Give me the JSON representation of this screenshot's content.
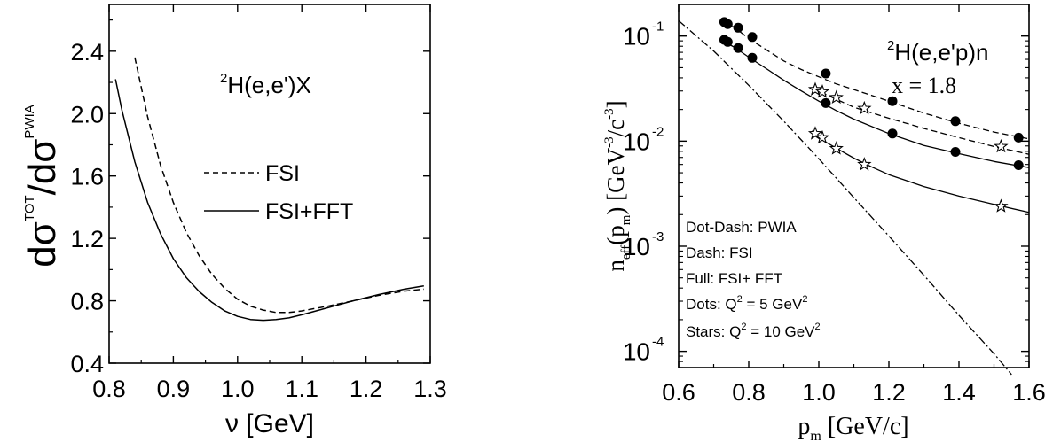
{
  "chart_data": [
    {
      "type": "line",
      "ylabel_main": "dσ",
      "ylabel_sup1": "TOT",
      "ylabel_mid": "/dσ",
      "ylabel_sup2": "PWIA",
      "xlabel": "ν [GeV]",
      "xlim": [
        0.8,
        1.3
      ],
      "ylim": [
        0.4,
        2.7
      ],
      "xticks": [
        0.8,
        0.9,
        1.0,
        1.1,
        1.2,
        1.3
      ],
      "xtick_labels": [
        "0.8",
        "0.9",
        "1.0",
        "1.1",
        "1.2",
        "1.3"
      ],
      "yticks": [
        0.4,
        0.8,
        1.2,
        1.6,
        2.0,
        2.4
      ],
      "ytick_labels": [
        "0.4",
        "0.8",
        "1.2",
        "1.6",
        "2.0",
        "2.4"
      ],
      "annotation": {
        "sup": "2",
        "text": "H(e,e')X"
      },
      "legend": {
        "placement": "center-right"
      },
      "series": [
        {
          "name": "FSI",
          "style": "dashed",
          "x": [
            0.84,
            0.86,
            0.88,
            0.9,
            0.92,
            0.94,
            0.96,
            0.98,
            1.0,
            1.02,
            1.04,
            1.06,
            1.08,
            1.1,
            1.14,
            1.18,
            1.22,
            1.26,
            1.29
          ],
          "y": [
            2.36,
            1.98,
            1.67,
            1.43,
            1.24,
            1.09,
            0.97,
            0.88,
            0.81,
            0.765,
            0.74,
            0.725,
            0.725,
            0.735,
            0.765,
            0.8,
            0.835,
            0.862,
            0.875
          ]
        },
        {
          "name": "FSI+FFT",
          "style": "solid",
          "x": [
            0.81,
            0.82,
            0.84,
            0.86,
            0.88,
            0.9,
            0.92,
            0.94,
            0.96,
            0.98,
            1.0,
            1.02,
            1.04,
            1.06,
            1.08,
            1.1,
            1.14,
            1.18,
            1.22,
            1.26,
            1.29
          ],
          "y": [
            2.22,
            2.02,
            1.69,
            1.43,
            1.23,
            1.07,
            0.95,
            0.86,
            0.79,
            0.735,
            0.7,
            0.68,
            0.675,
            0.68,
            0.69,
            0.71,
            0.755,
            0.8,
            0.84,
            0.875,
            0.895
          ]
        }
      ]
    },
    {
      "type": "scatter",
      "ylabel": "n",
      "ylabel_sub": "eff",
      "ylabel_arg_open": "(p",
      "ylabel_arg_sub": "m",
      "ylabel_units_open": ") [GeV",
      "ylabel_units_sup1": "-3",
      "ylabel_units_mid": "/c",
      "ylabel_units_sup2": "-3",
      "ylabel_units_close": "]",
      "xlabel": "p",
      "xlabel_sub": "m",
      "xlabel_units": " [GeV/c]",
      "xlim": [
        0.6,
        1.6
      ],
      "ylim": [
        7e-05,
        0.2
      ],
      "yscale": "log",
      "xticks": [
        0.6,
        0.8,
        1.0,
        1.2,
        1.4,
        1.6
      ],
      "xtick_labels": [
        "0.6",
        "0.8",
        "1.0",
        "1.2",
        "1.4",
        "1.6"
      ],
      "yticks": [
        0.0001,
        0.001,
        0.01,
        0.1
      ],
      "ytick_bases": [
        "10",
        "10",
        "10",
        "10"
      ],
      "ytick_exps": [
        "-4",
        "-3",
        "-2",
        "-1"
      ],
      "annotation": {
        "sup": "2",
        "text": "H(e,e'p)n",
        "x_value": "x = 1.8"
      },
      "legend_text": [
        {
          "text": "Dot-Dash: PWIA"
        },
        {
          "text": "Dash: FSI"
        },
        {
          "text": "Full: FSI+ FFT"
        },
        {
          "text": "Dots:  Q",
          "sup": "2",
          "tail": " =  5 GeV",
          "sup2": "2"
        },
        {
          "text": "Stars: Q",
          "sup": "2",
          "tail": " = 10 GeV",
          "sup2": "2"
        }
      ],
      "curves": [
        {
          "style": "dashdot",
          "x": [
            0.6,
            0.7,
            0.8,
            0.9,
            1.0,
            1.1,
            1.2,
            1.3,
            1.4,
            1.5,
            1.55
          ],
          "y": [
            0.14,
            0.072,
            0.034,
            0.0155,
            0.0068,
            0.0029,
            0.00125,
            0.00053,
            0.00022,
            9.5e-05,
            6e-05
          ]
        },
        {
          "style": "dashed",
          "x": [
            0.73,
            0.76,
            0.8,
            0.85,
            0.9,
            0.95,
            1.0,
            1.05,
            1.1,
            1.2,
            1.3,
            1.4,
            1.5,
            1.6
          ],
          "y": [
            0.14,
            0.12,
            0.095,
            0.074,
            0.058,
            0.048,
            0.041,
            0.035,
            0.031,
            0.024,
            0.0185,
            0.0148,
            0.0122,
            0.0105
          ]
        },
        {
          "style": "solid",
          "x": [
            0.72,
            0.76,
            0.8,
            0.85,
            0.9,
            0.95,
            1.0,
            1.05,
            1.1,
            1.2,
            1.3,
            1.4,
            1.5,
            1.6
          ],
          "y": [
            0.092,
            0.078,
            0.063,
            0.049,
            0.038,
            0.03,
            0.024,
            0.0195,
            0.0162,
            0.0118,
            0.0091,
            0.0076,
            0.0064,
            0.0056
          ]
        },
        {
          "style": "dashed",
          "x": [
            0.98,
            1.05,
            1.1,
            1.2,
            1.3,
            1.4,
            1.5,
            1.6
          ],
          "y": [
            0.032,
            0.025,
            0.021,
            0.0165,
            0.0132,
            0.0108,
            0.0089,
            0.0075
          ]
        },
        {
          "style": "solid",
          "x": [
            0.98,
            1.02,
            1.06,
            1.1,
            1.15,
            1.2,
            1.3,
            1.4,
            1.5,
            1.6
          ],
          "y": [
            0.0125,
            0.0098,
            0.0082,
            0.0069,
            0.0057,
            0.0048,
            0.0037,
            0.003,
            0.0025,
            0.0021
          ]
        }
      ],
      "series": [
        {
          "marker": "dot",
          "x": [
            0.73,
            0.74,
            0.77,
            0.81,
            1.02,
            1.21,
            1.39,
            1.57
          ],
          "y": [
            0.136,
            0.13,
            0.12,
            0.098,
            0.044,
            0.024,
            0.0155,
            0.0108
          ]
        },
        {
          "marker": "dot",
          "x": [
            0.73,
            0.74,
            0.77,
            0.81,
            1.02,
            1.21,
            1.39,
            1.57
          ],
          "y": [
            0.092,
            0.088,
            0.077,
            0.062,
            0.023,
            0.0118,
            0.0079,
            0.0059
          ]
        },
        {
          "marker": "star",
          "x": [
            0.99,
            1.01,
            1.05,
            1.13,
            1.52
          ],
          "y": [
            0.031,
            0.0295,
            0.026,
            0.0205,
            0.0089
          ]
        },
        {
          "marker": "star",
          "x": [
            0.99,
            1.01,
            1.05,
            1.13,
            1.52
          ],
          "y": [
            0.0118,
            0.0108,
            0.0085,
            0.006,
            0.0024
          ]
        }
      ]
    }
  ]
}
